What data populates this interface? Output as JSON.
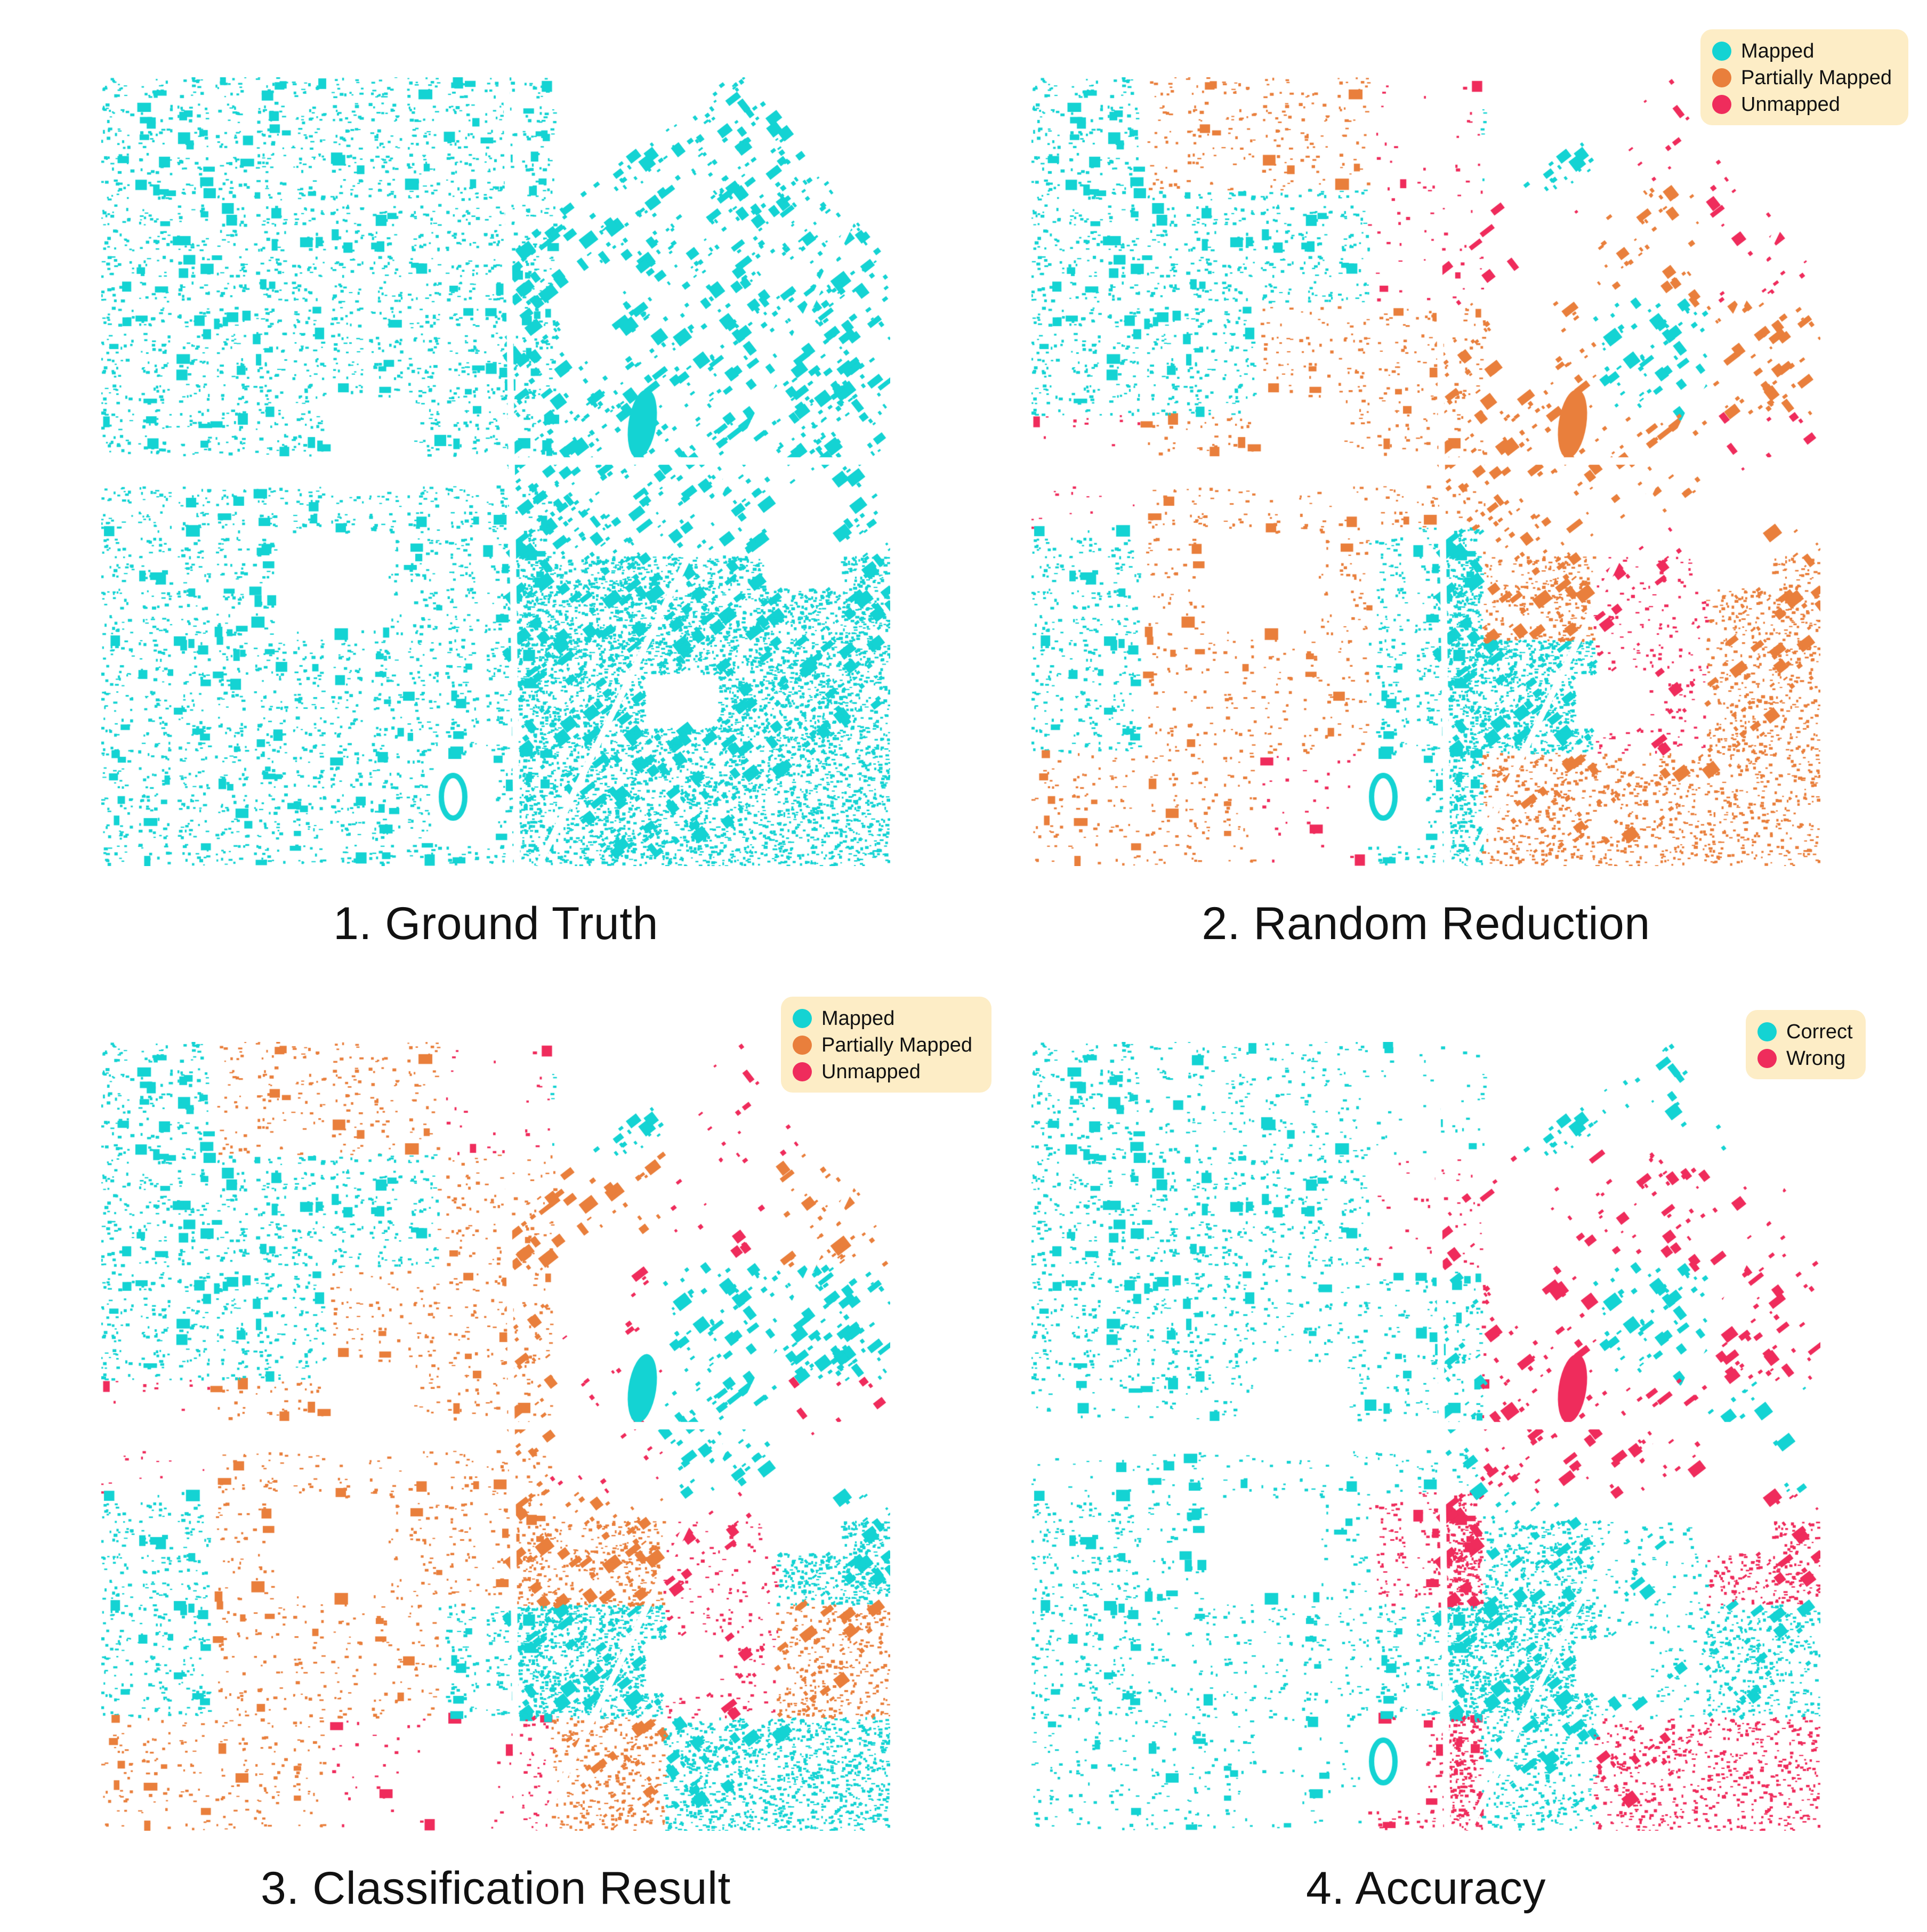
{
  "colors": {
    "mapped": "#14d3d3",
    "partially_mapped": "#e97f3c",
    "unmapped": "#ef2c5c",
    "correct": "#14d3d3",
    "wrong": "#ef2c5c",
    "legend_bg": "#fdedc6",
    "background": "#ffffff"
  },
  "panels": [
    {
      "id": "ground-truth",
      "caption": "1. Ground Truth",
      "mode": "gt",
      "legend": []
    },
    {
      "id": "random-reduction",
      "caption": "2. Random Reduction",
      "mode": "rr",
      "legend": [
        {
          "label": "Mapped",
          "color": "#14d3d3"
        },
        {
          "label": "Partially Mapped",
          "color": "#e97f3c"
        },
        {
          "label": "Unmapped",
          "color": "#ef2c5c"
        }
      ]
    },
    {
      "id": "classification-result",
      "caption": "3. Classification Result",
      "mode": "cr",
      "legend": [
        {
          "label": "Mapped",
          "color": "#14d3d3"
        },
        {
          "label": "Partially Mapped",
          "color": "#e97f3c"
        },
        {
          "label": "Unmapped",
          "color": "#ef2c5c"
        }
      ]
    },
    {
      "id": "accuracy",
      "caption": "4. Accuracy",
      "mode": "acc",
      "legend": [
        {
          "label": "Correct",
          "color": "#14d3d3"
        },
        {
          "label": "Wrong",
          "color": "#ef2c5c"
        }
      ]
    }
  ],
  "tile_grid": {
    "rows": 7,
    "cols": 7,
    "random_reduction": [
      [
        "M",
        "P",
        "P",
        "U",
        "M",
        "U",
        "U"
      ],
      [
        "M",
        "M",
        "M",
        "U",
        "U",
        "P",
        "U"
      ],
      [
        "M",
        "M",
        "P",
        "P",
        "P",
        "M",
        "P"
      ],
      [
        "U",
        "P",
        "P",
        "P",
        "P",
        "P",
        "U"
      ],
      [
        "M",
        "P",
        "P",
        "M",
        "P",
        "U",
        "P"
      ],
      [
        "M",
        "P",
        "P",
        "M",
        "M",
        "U",
        "P"
      ],
      [
        "P",
        "P",
        "U",
        "M",
        "P",
        "P",
        "P"
      ]
    ],
    "classification_result": [
      [
        "M",
        "P",
        "P",
        "U",
        "M",
        "U",
        "U"
      ],
      [
        "M",
        "M",
        "M",
        "P",
        "P",
        "U",
        "P"
      ],
      [
        "M",
        "M",
        "P",
        "P",
        "U",
        "M",
        "M"
      ],
      [
        "U",
        "P",
        "P",
        "P",
        "U",
        "M",
        "U"
      ],
      [
        "M",
        "P",
        "P",
        "P",
        "P",
        "U",
        "M"
      ],
      [
        "M",
        "P",
        "P",
        "M",
        "M",
        "U",
        "P"
      ],
      [
        "P",
        "P",
        "U",
        "U",
        "P",
        "M",
        "M"
      ]
    ]
  }
}
